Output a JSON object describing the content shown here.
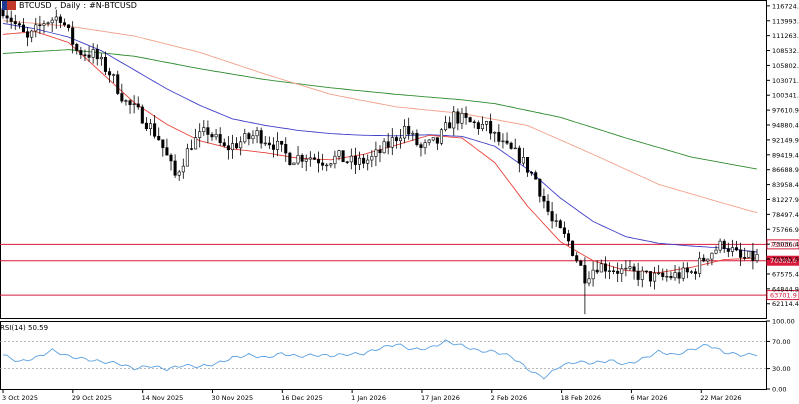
{
  "header": {
    "symbol": "BTCUSD",
    "timeframe": "Daily",
    "description": "#N-BTCUSD"
  },
  "rsi": {
    "label": "RSI(14)",
    "value": "50.59"
  },
  "colors": {
    "bull": "#ffffff",
    "bear": "#000000",
    "ema_fast": "#e8433a",
    "ema_mid": "#4040c8",
    "ema_slow": "#f2a08a",
    "ema_long": "#2e8b2e",
    "hline": "#d81b3c",
    "rsi": "#5aa0e0"
  },
  "chart_data": {
    "type": "candlestick",
    "price_axis": [
      "116724.4",
      "113993.9",
      "111263.4",
      "108532.9",
      "105802.4",
      "103071.9",
      "100341.4",
      "97610.9",
      "94880.4",
      "92149.9",
      "89419.4",
      "86688.9",
      "83958.4",
      "81227.9",
      "78497.4",
      "75766.9",
      "73036.4",
      "70305.9",
      "67575.4",
      "64844.9",
      "62114.4"
    ],
    "rsi_axis": [
      "100.00",
      "70.00",
      "30.00",
      "0.00"
    ],
    "x_labels": [
      "3 Oct 2025",
      "29 Oct 2025",
      "14 Nov 2025",
      "30 Nov 2025",
      "16 Dec 2025",
      "1 Jan 2026",
      "17 Jan 2026",
      "2 Feb 2026",
      "18 Feb 2026",
      "6 Mar 2026",
      "22 Mar 2026"
    ],
    "horizontal_levels": [
      {
        "label": "73000.0",
        "value": 73000
      },
      {
        "label": "70000.0",
        "value": 70000
      },
      {
        "label": "63701.9",
        "value": 63701.9
      }
    ],
    "ylim": [
      59500,
      117800
    ],
    "rsi_levels": [
      70,
      30
    ],
    "rsi_current": 50.59,
    "ema_fast": [
      [
        0,
        111500
      ],
      [
        8,
        112000
      ],
      [
        16,
        110000
      ],
      [
        24,
        104500
      ],
      [
        32,
        99000
      ],
      [
        40,
        95000
      ],
      [
        48,
        92000
      ],
      [
        56,
        90500
      ],
      [
        64,
        89800
      ],
      [
        72,
        88800
      ],
      [
        80,
        88500
      ],
      [
        88,
        89500
      ],
      [
        96,
        91200
      ],
      [
        104,
        93000
      ],
      [
        112,
        92500
      ],
      [
        120,
        88000
      ],
      [
        128,
        80000
      ],
      [
        136,
        73500
      ],
      [
        144,
        70000
      ],
      [
        152,
        68200
      ],
      [
        160,
        67800
      ],
      [
        168,
        68800
      ],
      [
        176,
        70200
      ],
      [
        184,
        70500
      ]
    ],
    "ema_mid": [
      [
        0,
        113500
      ],
      [
        8,
        112500
      ],
      [
        16,
        111000
      ],
      [
        24,
        108500
      ],
      [
        32,
        105000
      ],
      [
        40,
        101500
      ],
      [
        48,
        98500
      ],
      [
        56,
        96000
      ],
      [
        64,
        94800
      ],
      [
        72,
        93900
      ],
      [
        80,
        93300
      ],
      [
        88,
        93000
      ],
      [
        96,
        92900
      ],
      [
        104,
        93100
      ],
      [
        112,
        92800
      ],
      [
        120,
        91000
      ],
      [
        128,
        86800
      ],
      [
        136,
        81500
      ],
      [
        144,
        77200
      ],
      [
        152,
        74400
      ],
      [
        160,
        73200
      ],
      [
        168,
        72700
      ],
      [
        176,
        72300
      ],
      [
        184,
        71600
      ]
    ],
    "ema_slow": [
      [
        0,
        114000
      ],
      [
        16,
        113000
      ],
      [
        32,
        111200
      ],
      [
        48,
        108200
      ],
      [
        64,
        104200
      ],
      [
        80,
        100500
      ],
      [
        96,
        98200
      ],
      [
        112,
        97000
      ],
      [
        128,
        94800
      ],
      [
        144,
        89500
      ],
      [
        160,
        84000
      ],
      [
        176,
        80500
      ],
      [
        184,
        78800
      ]
    ],
    "ema_long": [
      [
        0,
        108000
      ],
      [
        16,
        108700
      ],
      [
        32,
        107500
      ],
      [
        48,
        105200
      ],
      [
        64,
        103200
      ],
      [
        80,
        101700
      ],
      [
        96,
        100500
      ],
      [
        112,
        99500
      ],
      [
        120,
        98800
      ],
      [
        136,
        96300
      ],
      [
        152,
        92500
      ],
      [
        168,
        89000
      ],
      [
        184,
        86800
      ]
    ],
    "rsi_series": [
      [
        0,
        50
      ],
      [
        4,
        40
      ],
      [
        8,
        46
      ],
      [
        12,
        57
      ],
      [
        16,
        48
      ],
      [
        20,
        44
      ],
      [
        24,
        40
      ],
      [
        28,
        38
      ],
      [
        32,
        30
      ],
      [
        36,
        34
      ],
      [
        40,
        29
      ],
      [
        44,
        35
      ],
      [
        48,
        33
      ],
      [
        52,
        37
      ],
      [
        56,
        46
      ],
      [
        60,
        50
      ],
      [
        64,
        46
      ],
      [
        68,
        52
      ],
      [
        72,
        48
      ],
      [
        76,
        50
      ],
      [
        80,
        49
      ],
      [
        84,
        51
      ],
      [
        88,
        52
      ],
      [
        92,
        60
      ],
      [
        96,
        66
      ],
      [
        100,
        58
      ],
      [
        104,
        60
      ],
      [
        108,
        70
      ],
      [
        112,
        64
      ],
      [
        116,
        56
      ],
      [
        120,
        55
      ],
      [
        124,
        48
      ],
      [
        128,
        30
      ],
      [
        130,
        22
      ],
      [
        132,
        17
      ],
      [
        134,
        25
      ],
      [
        136,
        34
      ],
      [
        140,
        40
      ],
      [
        144,
        38
      ],
      [
        148,
        42
      ],
      [
        152,
        36
      ],
      [
        156,
        44
      ],
      [
        160,
        55
      ],
      [
        164,
        50
      ],
      [
        168,
        58
      ],
      [
        172,
        65
      ],
      [
        176,
        54
      ],
      [
        180,
        50
      ],
      [
        184,
        51
      ]
    ],
    "candle_count": 185,
    "candle_anchors": [
      [
        0,
        116200
      ],
      [
        6,
        110500
      ],
      [
        10,
        113800
      ],
      [
        14,
        114800
      ],
      [
        18,
        108500
      ],
      [
        22,
        107800
      ],
      [
        26,
        104500
      ],
      [
        30,
        99000
      ],
      [
        34,
        96500
      ],
      [
        38,
        92500
      ],
      [
        42,
        85500
      ],
      [
        46,
        91500
      ],
      [
        50,
        93800
      ],
      [
        54,
        90500
      ],
      [
        58,
        91800
      ],
      [
        62,
        93200
      ],
      [
        66,
        91500
      ],
      [
        70,
        88800
      ],
      [
        74,
        89300
      ],
      [
        78,
        88400
      ],
      [
        82,
        88900
      ],
      [
        86,
        87800
      ],
      [
        90,
        88700
      ],
      [
        94,
        91200
      ],
      [
        98,
        94300
      ],
      [
        102,
        90500
      ],
      [
        106,
        91800
      ],
      [
        110,
        96500
      ],
      [
        114,
        95200
      ],
      [
        118,
        94500
      ],
      [
        122,
        91000
      ],
      [
        126,
        89000
      ],
      [
        130,
        85000
      ],
      [
        134,
        77000
      ],
      [
        138,
        73500
      ],
      [
        142,
        67200
      ],
      [
        145,
        69200
      ],
      [
        148,
        68800
      ],
      [
        152,
        67800
      ],
      [
        156,
        67300
      ],
      [
        160,
        66800
      ],
      [
        164,
        67300
      ],
      [
        168,
        67800
      ],
      [
        172,
        71200
      ],
      [
        176,
        73200
      ],
      [
        180,
        70300
      ],
      [
        184,
        70600
      ]
    ]
  }
}
